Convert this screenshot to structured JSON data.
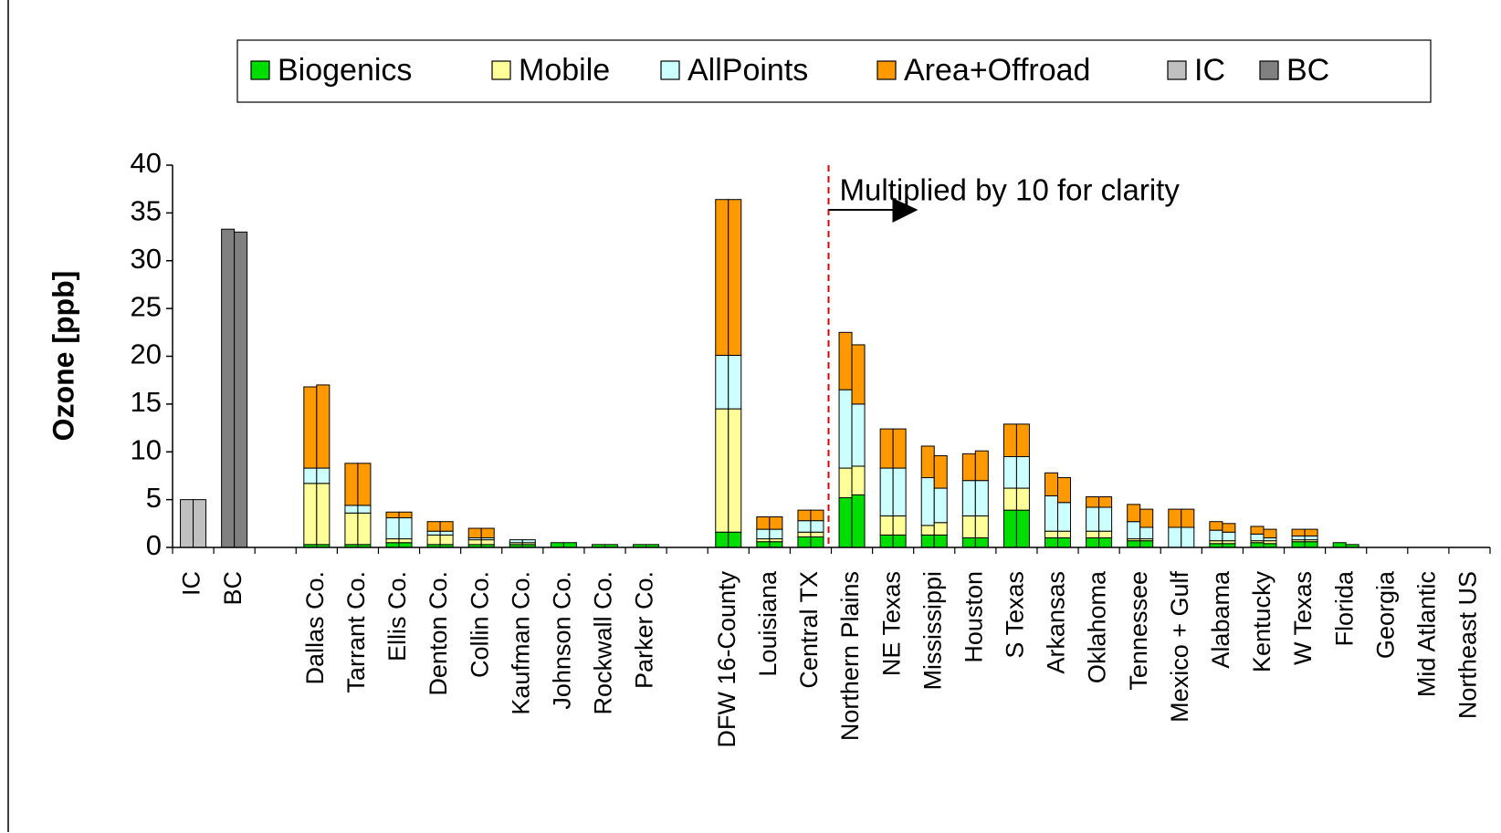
{
  "chart_data": {
    "type": "bar",
    "y_label": "Ozone [ppb]",
    "annotation": "Multiplied by 10 for clarity",
    "categories": [
      "IC",
      "BC",
      null,
      "Dallas Co.",
      "Tarrant Co.",
      "Ellis Co.",
      "Denton Co.",
      "Collin Co.",
      "Kaufman Co.",
      "Johnson Co.",
      "Rockwall Co.",
      "Parker Co.",
      null,
      "DFW 16-County",
      "Louisiana",
      "Central TX",
      "Northern Plains",
      "NE Texas",
      "Mississippi",
      "Houston",
      "S Texas",
      "Arkansas",
      "Oklahoma",
      "Tennessee",
      "Mexico + Gulf",
      "Alabama",
      "Kentucky",
      "W Texas",
      "Florida",
      "Georgia",
      "Mid Atlantic",
      "Northeast US"
    ],
    "series": [
      {
        "name": "Biogenics",
        "color": "#00dd00",
        "values": [
          null,
          null,
          null,
          [
            0.3,
            0.3
          ],
          [
            0.3,
            0.3
          ],
          [
            0.5,
            0.5
          ],
          [
            0.3,
            0.3
          ],
          [
            0.3,
            0.3
          ],
          [
            0.3,
            0.3
          ],
          [
            0.5,
            0.5
          ],
          [
            0.3,
            0.3
          ],
          [
            0.3,
            0.3
          ],
          null,
          [
            1.6,
            1.6
          ],
          [
            0.6,
            0.6
          ],
          [
            1.1,
            1.1
          ],
          [
            5.2,
            5.5
          ],
          [
            1.3,
            1.3
          ],
          [
            1.3,
            1.3
          ],
          [
            1,
            1
          ],
          [
            3.9,
            3.9
          ],
          [
            1,
            1
          ],
          [
            1,
            1
          ],
          [
            0.7,
            0.7
          ],
          null,
          [
            0.4,
            0.4
          ],
          [
            0.5,
            0.4
          ],
          [
            0.6,
            0.6
          ],
          [
            0.5,
            0.3
          ],
          null,
          null,
          null
        ]
      },
      {
        "name": "Mobile",
        "color": "#ffff99",
        "values": [
          null,
          null,
          null,
          [
            6.4,
            6.4
          ],
          [
            3.3,
            3.3
          ],
          [
            0.4,
            0.4
          ],
          [
            1,
            1
          ],
          [
            0.5,
            0.5
          ],
          [
            0.2,
            0.2
          ],
          null,
          null,
          null,
          null,
          [
            12.9,
            12.9
          ],
          [
            0.3,
            0.3
          ],
          [
            0.5,
            0.5
          ],
          [
            3.1,
            3
          ],
          [
            2,
            2
          ],
          [
            1,
            1.3
          ],
          [
            2.3,
            2.3
          ],
          [
            2.3,
            2.3
          ],
          [
            0.7,
            0.7
          ],
          [
            0.7,
            0.7
          ],
          [
            0.2,
            0.2
          ],
          null,
          [
            0.3,
            0.3
          ],
          [
            0.2,
            0.3
          ],
          [
            0.2,
            0.2
          ],
          null,
          null,
          null,
          null
        ]
      },
      {
        "name": "AllPoints",
        "color": "#ccffff",
        "values": [
          null,
          null,
          null,
          [
            1.6,
            1.6
          ],
          [
            0.8,
            0.8
          ],
          [
            2.2,
            2.2
          ],
          [
            0.4,
            0.4
          ],
          [
            0.2,
            0.2
          ],
          [
            0.3,
            0.3
          ],
          null,
          null,
          null,
          null,
          [
            5.6,
            5.6
          ],
          [
            1,
            1
          ],
          [
            1.2,
            1.2
          ],
          [
            8.2,
            6.5
          ],
          [
            5,
            5
          ],
          [
            5,
            3.6
          ],
          [
            3.7,
            3.7
          ],
          [
            3.3,
            3.3
          ],
          [
            3.7,
            3
          ],
          [
            2.5,
            2.5
          ],
          [
            1.8,
            1.2
          ],
          [
            2.1,
            2.1
          ],
          [
            1.1,
            0.9
          ],
          [
            0.7,
            0.3
          ],
          [
            0.4,
            0.4
          ],
          null,
          null,
          null,
          null
        ]
      },
      {
        "name": "Area+Offroad",
        "color": "#ff9900",
        "values": [
          null,
          null,
          null,
          [
            8.5,
            8.7
          ],
          [
            4.4,
            4.4
          ],
          [
            0.6,
            0.6
          ],
          [
            1,
            1
          ],
          [
            1,
            1
          ],
          null,
          null,
          null,
          null,
          null,
          [
            16.3,
            16.3
          ],
          [
            1.3,
            1.3
          ],
          [
            1.1,
            1.1
          ],
          [
            6,
            6.2
          ],
          [
            4.1,
            4.1
          ],
          [
            3.3,
            3.4
          ],
          [
            2.8,
            3.1
          ],
          [
            3.4,
            3.4
          ],
          [
            2.4,
            2.6
          ],
          [
            1.1,
            1.1
          ],
          [
            1.8,
            1.9
          ],
          [
            1.9,
            1.9
          ],
          [
            0.9,
            0.9
          ],
          [
            0.8,
            0.9
          ],
          [
            0.7,
            0.7
          ],
          null,
          null,
          null,
          null
        ]
      },
      {
        "name": "IC",
        "color": "#c0c0c0",
        "values": [
          [
            5,
            5
          ],
          null,
          null,
          null,
          null,
          null,
          null,
          null,
          null,
          null,
          null,
          null,
          null,
          null,
          null,
          null,
          null,
          null,
          null,
          null,
          null,
          null,
          null,
          null,
          null,
          null,
          null,
          null,
          null,
          null,
          null,
          null
        ]
      },
      {
        "name": "BC",
        "color": "#808080",
        "values": [
          null,
          [
            33.3,
            33
          ],
          null,
          null,
          null,
          null,
          null,
          null,
          null,
          null,
          null,
          null,
          null,
          null,
          null,
          null,
          null,
          null,
          null,
          null,
          null,
          null,
          null,
          null,
          null,
          null,
          null,
          null,
          null,
          null,
          null,
          null
        ]
      }
    ],
    "ylim": [
      0,
      40
    ],
    "yticks": [
      0,
      5,
      10,
      15,
      20,
      25,
      30,
      35,
      40
    ]
  }
}
